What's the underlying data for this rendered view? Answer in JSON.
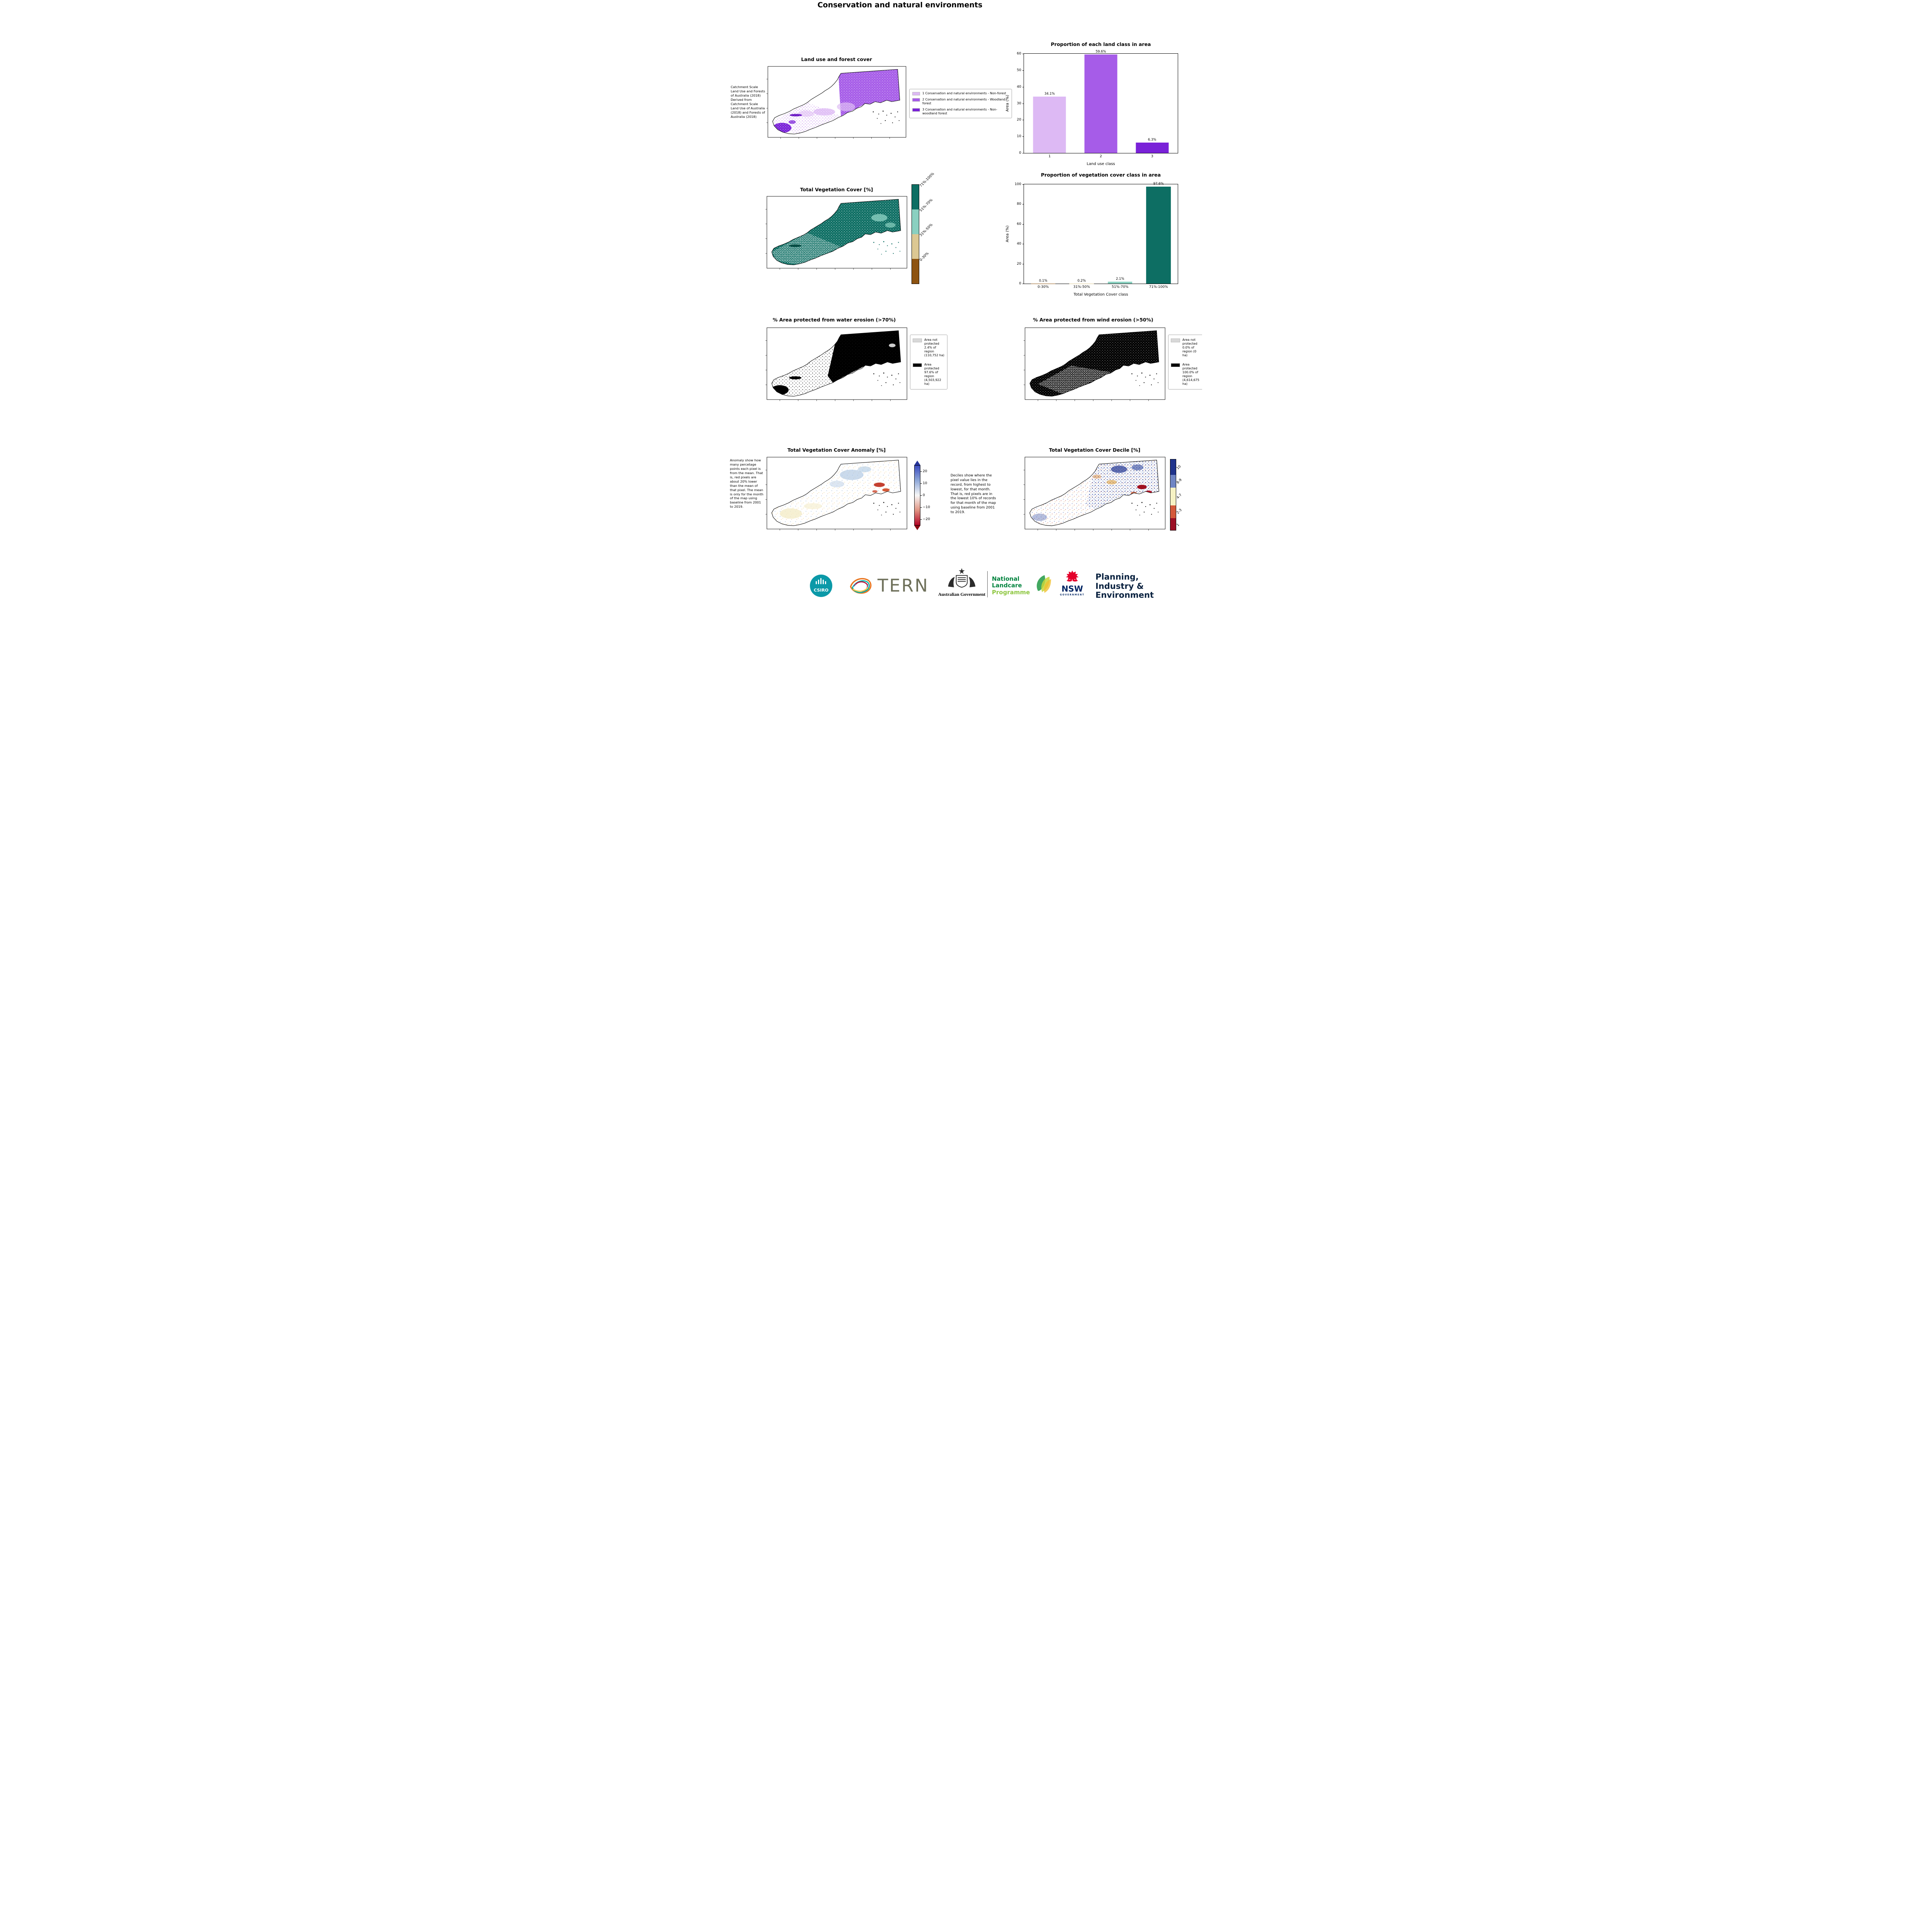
{
  "page_title": "Conservation and natural environments",
  "maps": {
    "land_use": {
      "title": "Land use and forest cover",
      "side_note": "Catchment Scale Land Use and Forests of Australia (2018) Derived from Catchment Scale Land Use of Australia (2018) and Forests of Australia (2018)",
      "legend": [
        {
          "label": "1 Conservation and natural environments - Non-forest",
          "color": "#ddb9f4"
        },
        {
          "label": "2 Conservation and natural environments - Woodland forest",
          "color": "#a65ce8"
        },
        {
          "label": "3 Conservation and natural environments - Non-woodland forest",
          "color": "#7a22d8"
        }
      ]
    },
    "veg_cover": {
      "title": "Total Vegetation Cover [%]",
      "colorbar": [
        {
          "label": "71%-100%",
          "color": "#0d6e63"
        },
        {
          "label": "51%-70%",
          "color": "#8ad0c0"
        },
        {
          "label": "31%-50%",
          "color": "#dcc893"
        },
        {
          "label": "0-30%",
          "color": "#8d5311"
        }
      ]
    },
    "water_erosion": {
      "title": "% Area protected from water erosion (>70%)",
      "legend": [
        {
          "label": "Area not protected 2.4% of region (110,752 ha)",
          "color": "#d8d8d8"
        },
        {
          "label": "Area protected 97.6% of region (4,503,922 ha)",
          "color": "#000000"
        }
      ]
    },
    "wind_erosion": {
      "title": "% Area protected from wind erosion (>50%)",
      "legend": [
        {
          "label": "Area not protected 0.0% of region (0 ha)",
          "color": "#d8d8d8"
        },
        {
          "label": "Area protected 100.0% of region (4,614,675 ha)",
          "color": "#000000"
        }
      ]
    },
    "anomaly": {
      "title": "Total Vegetation Cover Anomaly [%]",
      "note": "Anomaly show how many percetage points each pixel is from the mean. That is, red pixels are about 20% lower than the mean of that pixel. The mean is only for the month of the map using baseline from 2001 to 2019.",
      "colorbar_ticks": [
        "20",
        "10",
        "0",
        "−10",
        "−20"
      ]
    },
    "decile": {
      "title": "Total Vegetation Cover Decile [%]",
      "note": "Deciles show where the pixel value lies in the record, from highest to lowest, for that month. That is, red pixels are in the lowest 10% of records for that month of the map using baseline from 2001 to 2019.",
      "colorbar": [
        {
          "label": "10",
          "color": "#20348c",
          "height": 22
        },
        {
          "label": "8-9",
          "color": "#6f85c4",
          "height": 18
        },
        {
          "label": "4-7",
          "color": "#f6f2c4",
          "height": 25
        },
        {
          "label": "2-3",
          "color": "#d4593a",
          "height": 18
        },
        {
          "label": "1",
          "color": "#9c0f24",
          "height": 17
        }
      ]
    }
  },
  "chart_data": [
    {
      "type": "bar",
      "title": "Proportion of each land class in area",
      "categories": [
        "1",
        "2",
        "3"
      ],
      "values": [
        34.1,
        59.6,
        6.3
      ],
      "value_labels": [
        "34.1%",
        "59.6%",
        "6.3%"
      ],
      "bar_colors": [
        "#ddb9f4",
        "#a65ce8",
        "#7a22d8"
      ],
      "xlabel": "Land use class",
      "ylabel": "Area (%)",
      "ylim": [
        0,
        60
      ],
      "yticks": [
        0,
        10,
        20,
        30,
        40,
        50,
        60
      ],
      "grid": false,
      "legend_position": "none"
    },
    {
      "type": "bar",
      "title": "Proportion of vegetation cover class in area",
      "categories": [
        "0-30%",
        "31%-50%",
        "51%-70%",
        "71%-100%"
      ],
      "values": [
        0.1,
        0.2,
        2.1,
        97.6
      ],
      "value_labels": [
        "0.1%",
        "0.2%",
        "2.1%",
        "97.6%"
      ],
      "bar_colors": [
        "#8d5311",
        "#dcc893",
        "#8ad0c0",
        "#0d6e63"
      ],
      "xlabel": "Total Vegetation Cover class",
      "ylabel": "Area (%)",
      "ylim": [
        0,
        100
      ],
      "yticks": [
        0,
        20,
        40,
        60,
        80,
        100
      ],
      "grid": false,
      "legend_position": "none"
    }
  ],
  "footer": {
    "csiro": "CSIRO",
    "tern": "TERN",
    "aus_gov": "Australian Government",
    "landcare_line1": "National",
    "landcare_line2": "Landcare",
    "landcare_line3": "Programme",
    "nsw": "NSW",
    "nsw_sub": "GOVERNMENT",
    "planning_lines": [
      "Planning,",
      "Industry &",
      "Environment"
    ]
  }
}
